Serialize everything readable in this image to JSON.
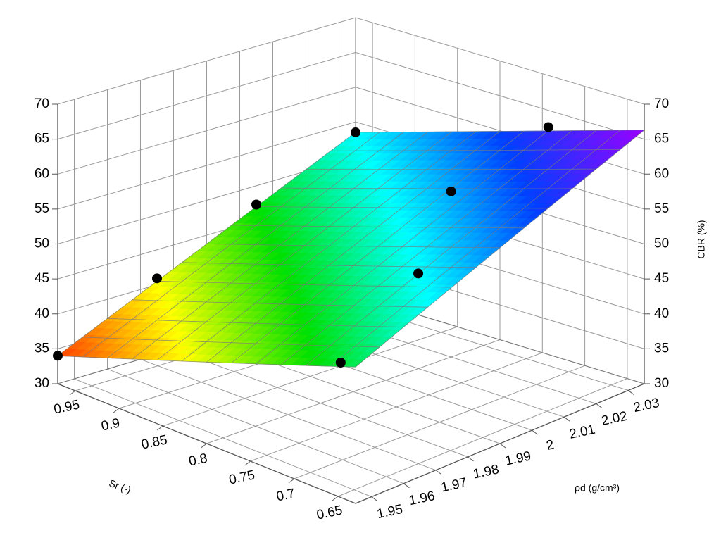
{
  "chart_data": {
    "type": "surface3d",
    "xlabel": "Sr (-)",
    "ylabel": "ρd (g/cm³)",
    "zlabel": "CBR (%)",
    "xlim": [
      0.63,
      0.97
    ],
    "xticks": [
      0.65,
      0.7,
      0.75,
      0.8,
      0.85,
      0.9,
      0.95
    ],
    "ylim": [
      1.945,
      2.035
    ],
    "yticks": [
      1.95,
      1.96,
      1.97,
      1.98,
      1.99,
      2,
      2.01,
      2.02,
      2.03
    ],
    "zlim": [
      30,
      70
    ],
    "zticks": [
      30,
      35,
      40,
      45,
      50,
      55,
      60,
      65,
      70
    ],
    "grid": true,
    "surface": {
      "x": [
        0.63,
        0.97
      ],
      "y": [
        1.945,
        2.035
      ],
      "z": [
        [
          49,
          66.3
        ],
        [
          34,
          53.5
        ]
      ]
    },
    "colorscale": [
      "#ff4000",
      "#ffff00",
      "#00e000",
      "#00ffff",
      "#0040ff",
      "#9900ff"
    ],
    "points": {
      "x": [
        0.97,
        0.97,
        0.97,
        0.97,
        0.743,
        0.743,
        0.691,
        0.647
      ],
      "y": [
        1.945,
        1.975,
        2.005,
        2.035,
        2.035,
        2.005,
        1.981,
        1.945
      ],
      "z": [
        34,
        40.9,
        47.3,
        53.5,
        62.6,
        58.4,
        53,
        48.8
      ],
      "color": "#000000"
    }
  }
}
